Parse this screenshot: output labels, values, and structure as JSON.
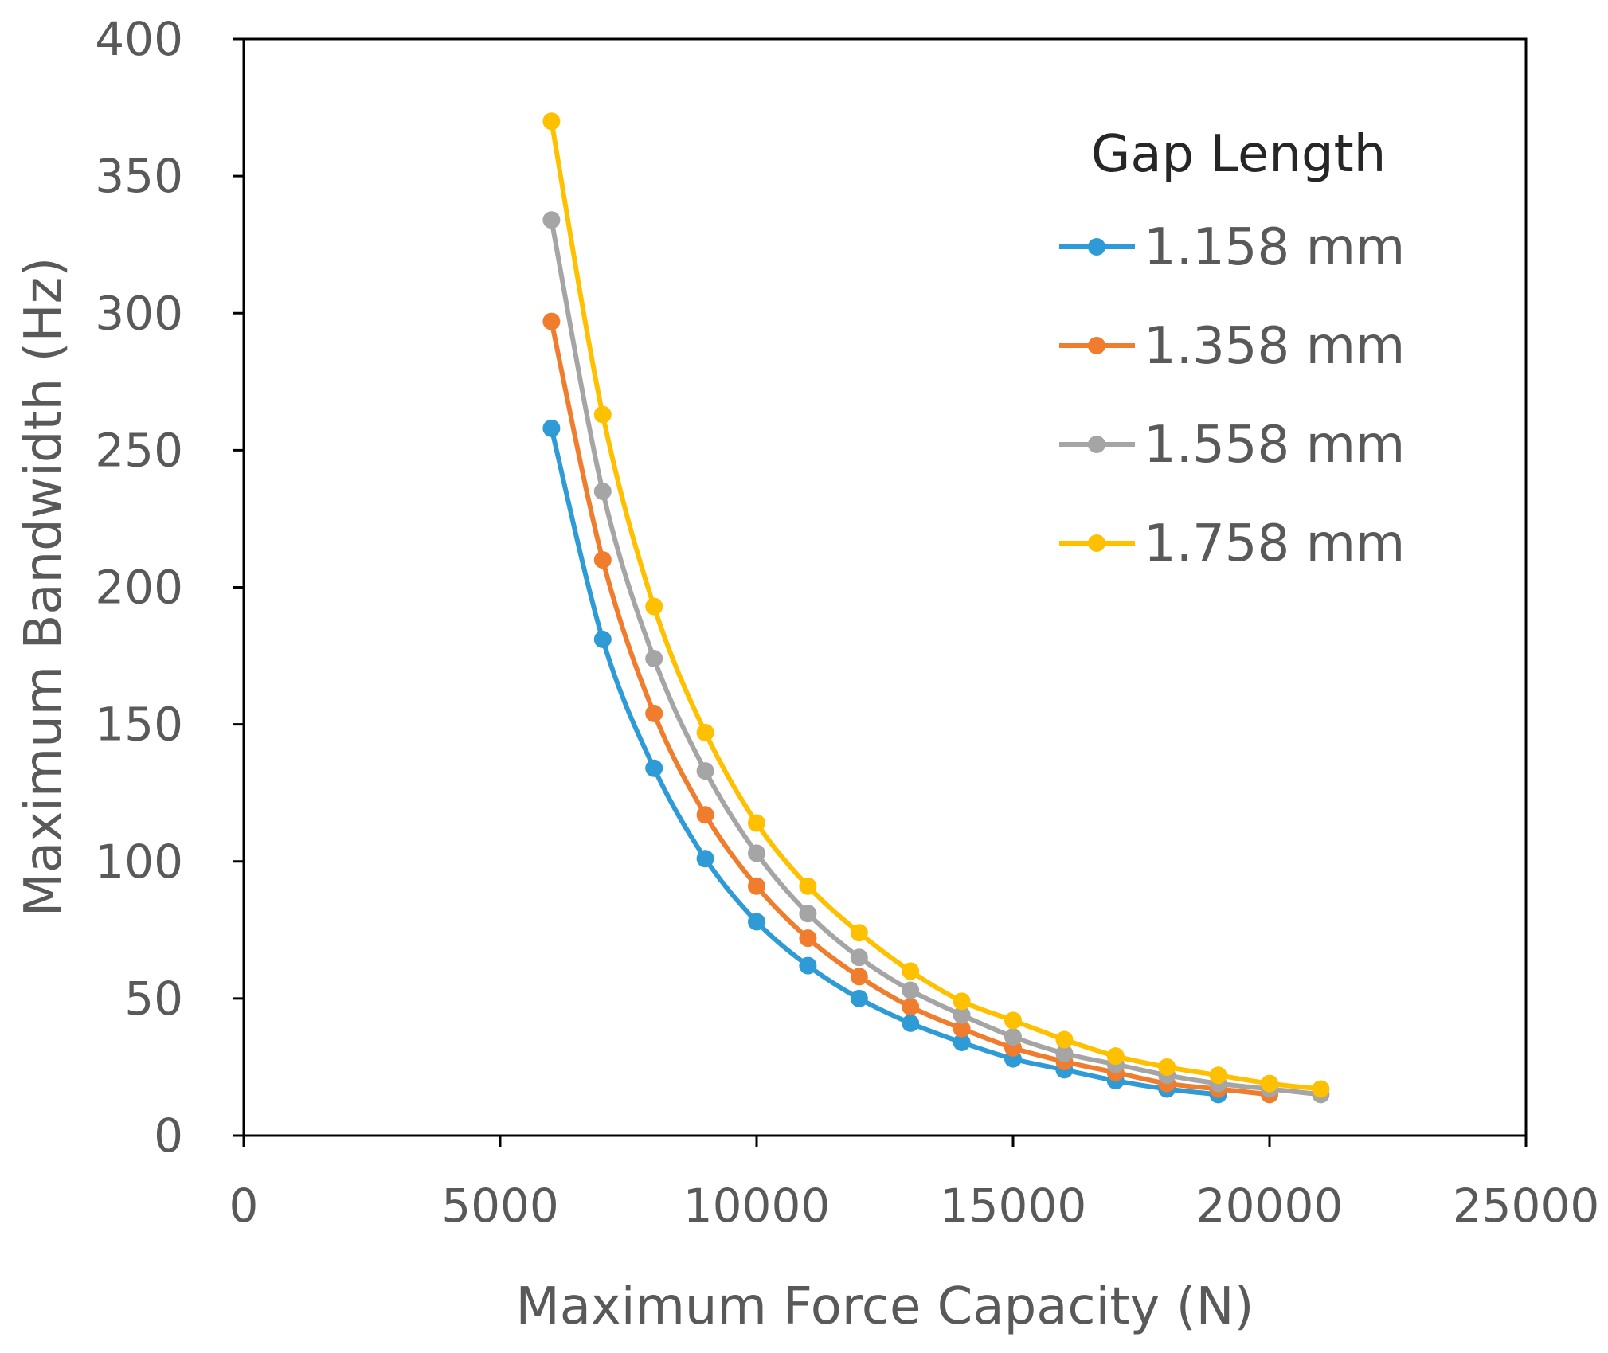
{
  "chart_data": {
    "type": "line",
    "title": "",
    "xlabel": "Maximum Force Capacity (N)",
    "ylabel": "Maximum Bandwidth (Hz)",
    "xlim": [
      0,
      25000
    ],
    "ylim": [
      0,
      400
    ],
    "x_ticks": [
      0,
      5000,
      10000,
      15000,
      20000,
      25000
    ],
    "y_ticks": [
      0,
      50,
      100,
      150,
      200,
      250,
      300,
      350,
      400
    ],
    "grid": false,
    "legend": {
      "title": "Gap Length",
      "position": "top-right"
    },
    "series": [
      {
        "name": "1.158 mm",
        "color": "#2E9BD6",
        "x": [
          6000,
          7000,
          8000,
          9000,
          10000,
          11000,
          12000,
          13000,
          14000,
          15000,
          16000,
          17000,
          18000,
          19000
        ],
        "values": [
          258,
          181,
          134,
          101,
          78,
          62,
          50,
          41,
          34,
          28,
          24,
          20,
          17,
          15
        ]
      },
      {
        "name": "1.358 mm",
        "color": "#F07C2E",
        "x": [
          6000,
          7000,
          8000,
          9000,
          10000,
          11000,
          12000,
          13000,
          14000,
          15000,
          16000,
          17000,
          18000,
          19000,
          20000
        ],
        "values": [
          297,
          210,
          154,
          117,
          91,
          72,
          58,
          47,
          39,
          32,
          27,
          23,
          19,
          17,
          15
        ]
      },
      {
        "name": "1.558 mm",
        "color": "#A5A5A5",
        "x": [
          6000,
          7000,
          8000,
          9000,
          10000,
          11000,
          12000,
          13000,
          14000,
          15000,
          16000,
          17000,
          18000,
          19000,
          20000,
          21000
        ],
        "values": [
          334,
          235,
          174,
          133,
          103,
          81,
          65,
          53,
          44,
          36,
          30,
          26,
          22,
          19,
          17,
          15
        ]
      },
      {
        "name": "1.758 mm",
        "color": "#FFC000",
        "x": [
          6000,
          7000,
          8000,
          9000,
          10000,
          11000,
          12000,
          13000,
          14000,
          15000,
          16000,
          17000,
          18000,
          19000,
          20000,
          21000
        ],
        "values": [
          370,
          263,
          193,
          147,
          114,
          91,
          74,
          60,
          49,
          42,
          35,
          29,
          25,
          22,
          19,
          17
        ]
      }
    ]
  }
}
